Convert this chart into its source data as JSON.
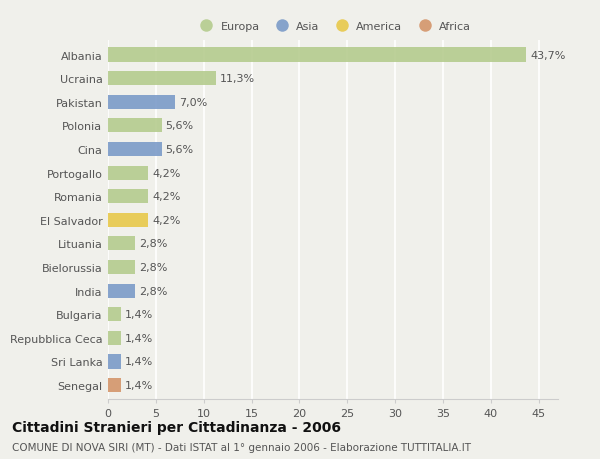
{
  "countries": [
    "Albania",
    "Ucraina",
    "Pakistan",
    "Polonia",
    "Cina",
    "Portogallo",
    "Romania",
    "El Salvador",
    "Lituania",
    "Bielorussia",
    "India",
    "Bulgaria",
    "Repubblica Ceca",
    "Sri Lanka",
    "Senegal"
  ],
  "values": [
    43.7,
    11.3,
    7.0,
    5.6,
    5.6,
    4.2,
    4.2,
    4.2,
    2.8,
    2.8,
    2.8,
    1.4,
    1.4,
    1.4,
    1.4
  ],
  "labels": [
    "43,7%",
    "11,3%",
    "7,0%",
    "5,6%",
    "5,6%",
    "4,2%",
    "4,2%",
    "4,2%",
    "2,8%",
    "2,8%",
    "2,8%",
    "1,4%",
    "1,4%",
    "1,4%",
    "1,4%"
  ],
  "continents": [
    "Europa",
    "Europa",
    "Asia",
    "Europa",
    "Asia",
    "Europa",
    "Europa",
    "America",
    "Europa",
    "Europa",
    "Asia",
    "Europa",
    "Europa",
    "Asia",
    "Africa"
  ],
  "continent_colors": {
    "Europa": "#b5cc8e",
    "Asia": "#7b9bc8",
    "America": "#e8c84a",
    "Africa": "#d4956a"
  },
  "legend_order": [
    "Europa",
    "Asia",
    "America",
    "Africa"
  ],
  "xlim": [
    0,
    47
  ],
  "xticks": [
    0,
    5,
    10,
    15,
    20,
    25,
    30,
    35,
    40,
    45
  ],
  "title": "Cittadini Stranieri per Cittadinanza - 2006",
  "subtitle": "COMUNE DI NOVA SIRI (MT) - Dati ISTAT al 1° gennaio 2006 - Elaborazione TUTTITALIA.IT",
  "background_color": "#f0f0eb",
  "bar_height": 0.6,
  "label_fontsize": 8,
  "tick_fontsize": 8,
  "title_fontsize": 10,
  "subtitle_fontsize": 7.5
}
